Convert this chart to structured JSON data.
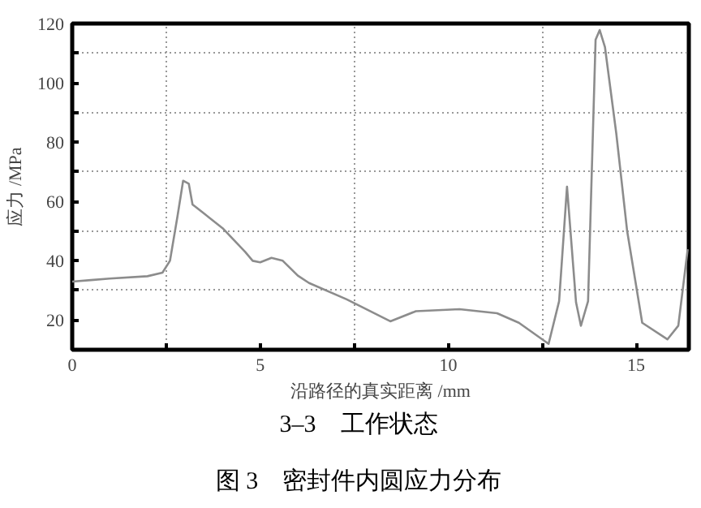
{
  "chart_data": {
    "type": "line",
    "xlabel": "沿路径的真实距离 /mm",
    "ylabel": "应力 /MPa",
    "annotations": [
      "3–3　工作状态",
      "图 3　密封件内圆应力分布"
    ],
    "x": [
      0,
      0.5,
      1,
      2,
      2.4,
      2.6,
      2.8,
      2.95,
      3.1,
      3.2,
      4,
      4.6,
      4.8,
      5,
      5.3,
      5.6,
      6,
      6.3,
      7.3,
      8.46,
      9.14,
      10.3,
      11.3,
      11.88,
      12.67,
      12.95,
      13.16,
      13.4,
      13.53,
      13.72,
      13.92,
      14.03,
      14.17,
      14.47,
      14.76,
      15.16,
      15.83,
      16.12,
      16.37
    ],
    "series": [
      {
        "color": "#8c8c8c",
        "values": [
          33,
          33.5,
          34,
          34.8,
          36,
          40,
          55,
          67,
          66,
          59,
          51,
          43,
          40,
          39.5,
          41,
          40,
          35,
          32.5,
          27,
          19.6,
          23,
          23.7,
          22.3,
          19.1,
          12,
          26.4,
          65,
          26,
          18.1,
          26.4,
          114.5,
          117.8,
          112,
          83,
          50,
          19.1,
          13.5,
          18.1,
          43.9
        ]
      }
    ],
    "xlim": [
      0,
      16.4
    ],
    "ylim": [
      10,
      120
    ],
    "xticks": [
      0,
      {
        "value": 2.5,
        "label": null
      },
      5,
      {
        "value": 7.5,
        "label": null
      },
      10,
      {
        "value": 12.5,
        "label": null
      },
      15
    ],
    "yticks": [
      20,
      {
        "value": 30,
        "label": null
      },
      40,
      {
        "value": 50,
        "label": null
      },
      60,
      {
        "value": 70,
        "label": null
      },
      80,
      {
        "value": 90,
        "label": null
      },
      100,
      {
        "value": 110,
        "label": null
      },
      120
    ],
    "grid": true,
    "marker": "none",
    "line_style": "solid"
  }
}
